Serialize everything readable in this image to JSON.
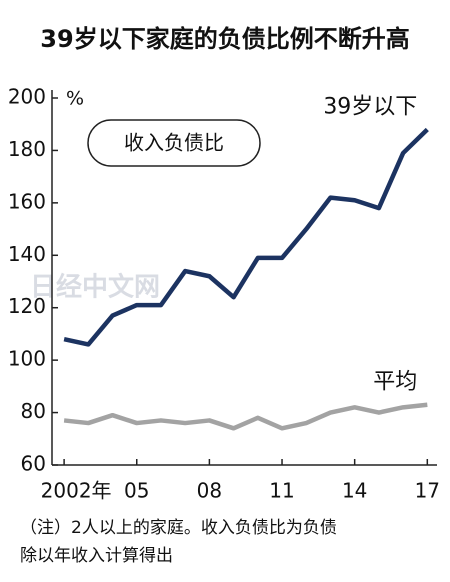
{
  "chart_data": {
    "type": "line",
    "title": "39岁以下家庭的负债比例不断升高",
    "y_unit": "%",
    "box_label": "收入负债比",
    "watermark": "日经中文网",
    "note_lines": [
      "（注）2人以上的家庭。收入负债比为负债",
      "除以年收入计算得出"
    ],
    "x": [
      2002,
      2003,
      2004,
      2005,
      2006,
      2007,
      2008,
      2009,
      2010,
      2011,
      2012,
      2013,
      2014,
      2015,
      2016,
      2017
    ],
    "series": [
      {
        "name": "39岁以下",
        "color": "#1c3361",
        "values": [
          108,
          106,
          117,
          121,
          121,
          134,
          132,
          124,
          139,
          139,
          150,
          162,
          161,
          158,
          179,
          188
        ]
      },
      {
        "name": "平均",
        "color": "#a3a3a3",
        "values": [
          77,
          76,
          79,
          76,
          77,
          76,
          77,
          74,
          78,
          74,
          76,
          80,
          82,
          80,
          82,
          83
        ]
      }
    ],
    "xlim": [
      2001.5,
      2017.4
    ],
    "xticks": [
      {
        "value": 2002,
        "label": "2002年"
      },
      {
        "value": 2005,
        "label": "05"
      },
      {
        "value": 2008,
        "label": "08"
      },
      {
        "value": 2011,
        "label": "11"
      },
      {
        "value": 2014,
        "label": "14"
      },
      {
        "value": 2017,
        "label": "17"
      }
    ],
    "ylim": [
      60,
      200
    ],
    "yticks": [
      60,
      80,
      100,
      120,
      140,
      160,
      180,
      200
    ],
    "grid": false
  }
}
